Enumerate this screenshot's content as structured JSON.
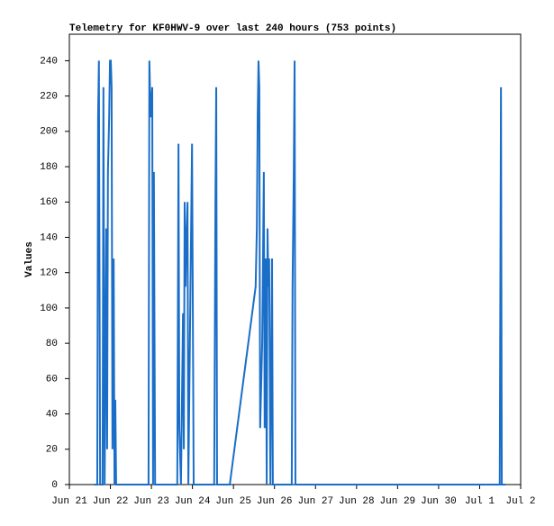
{
  "chart_data": {
    "type": "line",
    "title": "Telemetry for KF0HWV-9 over last 240 hours (753 points)",
    "y_label": "Values",
    "x": [
      0.61,
      0.68,
      0.7,
      0.72,
      0.75,
      0.81,
      0.83,
      0.86,
      0.9,
      0.92,
      0.94,
      0.97,
      0.99,
      1.01,
      1.03,
      1.05,
      1.08,
      1.1,
      1.12,
      1.14,
      1.93,
      1.95,
      1.98,
      2.02,
      2.04,
      2.06,
      2.09,
      2.63,
      2.66,
      2.68,
      2.72,
      2.77,
      2.79,
      2.81,
      2.83,
      2.85,
      2.88,
      2.9,
      2.99,
      3.01,
      3.03,
      3.53,
      3.56,
      3.58,
      3.6,
      3.91,
      4.54,
      4.57,
      4.59,
      4.61,
      4.63,
      4.65,
      4.7,
      4.74,
      4.76,
      4.79,
      4.81,
      4.83,
      4.85,
      4.87,
      4.9,
      4.94,
      4.96,
      5.42,
      5.44,
      5.47,
      5.49,
      5.51,
      10.49,
      10.52,
      10.54,
      10.63
    ],
    "series": [
      {
        "name": "Values",
        "color": "#1a6ec8",
        "values": [
          0,
          0,
          208,
          240,
          0,
          0,
          225,
          0,
          145,
          20,
          177,
          208,
          240,
          240,
          225,
          20,
          128,
          0,
          48,
          0,
          0,
          240,
          208,
          225,
          0,
          177,
          0,
          0,
          193,
          32,
          0,
          97,
          20,
          160,
          112,
          137,
          160,
          0,
          193,
          97,
          0,
          0,
          160,
          225,
          0,
          0,
          112,
          145,
          208,
          240,
          225,
          32,
          80,
          177,
          32,
          128,
          0,
          145,
          112,
          128,
          0,
          128,
          0,
          0,
          112,
          177,
          240,
          0,
          0,
          225,
          0,
          0
        ]
      }
    ],
    "xlim": [
      0,
      11
    ],
    "xticks": [
      {
        "value": 0,
        "label": "Jun 21"
      },
      {
        "value": 1,
        "label": "Jun 22"
      },
      {
        "value": 2,
        "label": "Jun 23"
      },
      {
        "value": 3,
        "label": "Jun 24"
      },
      {
        "value": 4,
        "label": "Jun 25"
      },
      {
        "value": 5,
        "label": "Jun 26"
      },
      {
        "value": 6,
        "label": "Jun 27"
      },
      {
        "value": 7,
        "label": "Jun 28"
      },
      {
        "value": 8,
        "label": "Jun 29"
      },
      {
        "value": 9,
        "label": "Jun 30"
      },
      {
        "value": 10,
        "label": "Jul 1"
      },
      {
        "value": 11,
        "label": "Jul 2"
      }
    ],
    "ylim": [
      0,
      255
    ],
    "yticks": [
      0,
      20,
      40,
      60,
      80,
      100,
      120,
      140,
      160,
      180,
      200,
      220,
      240
    ]
  }
}
